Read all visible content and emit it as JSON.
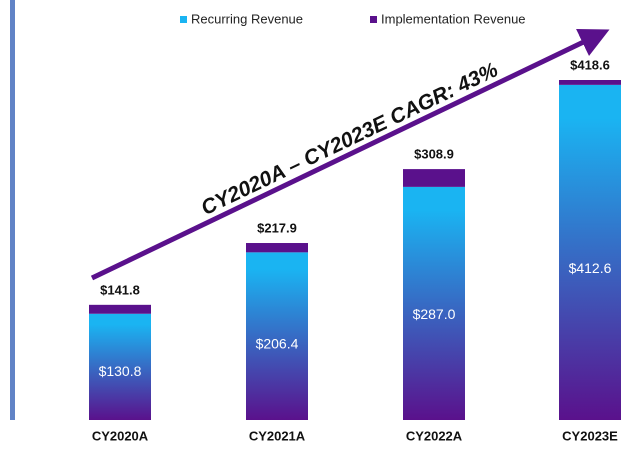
{
  "chart_data": {
    "type": "stacked_bar",
    "annotation": "CY2020A – CY2023E CAGR: 43%",
    "categories": [
      "CY2020A",
      "CY2021A",
      "CY2022A",
      "CY2023E"
    ],
    "series": [
      {
        "name": "Recurring Revenue",
        "color": "#1ab4f2",
        "values": [
          130.8,
          206.4,
          287.0,
          412.6
        ],
        "value_labels": [
          "$130.8",
          "$206.4",
          "$287.0",
          "$412.6"
        ]
      },
      {
        "name": "Implementation Revenue",
        "color": "#5a118c",
        "values": [
          11.0,
          11.5,
          21.9,
          6.0
        ]
      }
    ],
    "totals": [
      141.8,
      217.9,
      308.9,
      418.6
    ],
    "total_labels": [
      "$141.8",
      "$217.9",
      "$308.9",
      "$418.6"
    ]
  }
}
